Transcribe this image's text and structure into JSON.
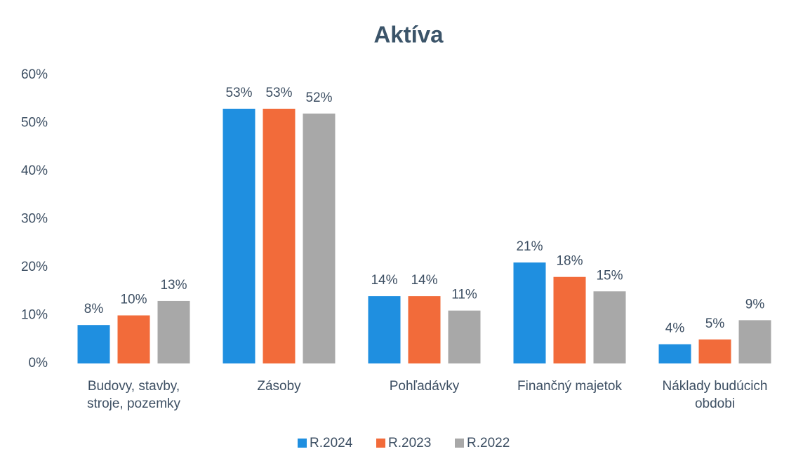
{
  "chart_data": {
    "type": "bar",
    "title": "Aktíva",
    "categories": [
      "Budovy, stavby, stroje, pozemky",
      "Zásoby",
      "Pohľadávky",
      "Finančný majetok",
      "Náklady budúcich obdobi"
    ],
    "series": [
      {
        "name": "R.2024",
        "color": "#1f8fe0",
        "values": [
          8,
          53,
          14,
          21,
          4
        ],
        "value_labels": [
          "8%",
          "53%",
          "14%",
          "21%",
          "4%"
        ]
      },
      {
        "name": "R.2023",
        "color": "#f26b3a",
        "values": [
          10,
          53,
          14,
          18,
          5
        ],
        "value_labels": [
          "10%",
          "53%",
          "14%",
          "18%",
          "5%"
        ]
      },
      {
        "name": "R.2022",
        "color": "#a8a8a8",
        "values": [
          13,
          52,
          11,
          15,
          9
        ],
        "value_labels": [
          "13%",
          "52%",
          "11%",
          "15%",
          "9%"
        ]
      }
    ],
    "ylim": [
      0,
      60
    ],
    "yticks": [
      {
        "value": 0,
        "label": "0%"
      },
      {
        "value": 10,
        "label": "10%"
      },
      {
        "value": 20,
        "label": "20%"
      },
      {
        "value": 30,
        "label": "30%"
      },
      {
        "value": 40,
        "label": "40%"
      },
      {
        "value": 50,
        "label": "50%"
      },
      {
        "value": 60,
        "label": "60%"
      }
    ],
    "grid": false,
    "legend": "bottom"
  }
}
